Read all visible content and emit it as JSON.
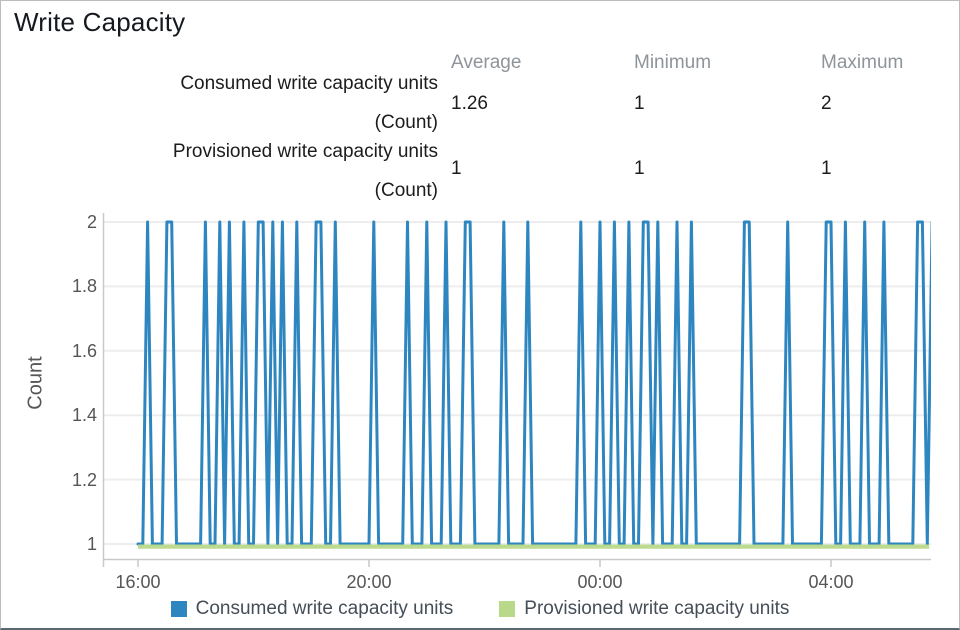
{
  "header": {
    "title": "Write Capacity"
  },
  "stats": {
    "columns": [
      "Average",
      "Minimum",
      "Maximum"
    ],
    "rows": [
      {
        "label": "Consumed write capacity units",
        "unit": "(Count)",
        "values": [
          "1.26",
          "1",
          "2"
        ]
      },
      {
        "label": "Provisioned write capacity units",
        "unit": "(Count)",
        "values": [
          "1",
          "1",
          "1"
        ]
      }
    ]
  },
  "colors": {
    "consumed_blue": "#2e86c0",
    "provisioned_green": "#b9d98a",
    "grid": "#ededed",
    "axis": "#c9c9c9",
    "header_gray": "#8e9499",
    "tick_text": "#565656",
    "legend_text": "#454e57"
  },
  "chart_data": {
    "type": "line",
    "title": "Write Capacity",
    "xlabel": "",
    "ylabel": "Count",
    "ylim": [
      1,
      2
    ],
    "yticks": [
      "1",
      "1.2",
      "1.4",
      "1.6",
      "1.8",
      "2"
    ],
    "ytick_values": [
      1,
      1.2,
      1.4,
      1.6,
      1.8,
      2
    ],
    "xticks": [
      {
        "label": "16:00",
        "m": 0
      },
      {
        "label": "20:00",
        "m": 240
      },
      {
        "label": "00:00",
        "m": 480
      },
      {
        "label": "04:00",
        "m": 720
      }
    ],
    "x_start_m": 0,
    "x_end_m": 822,
    "sample_period_min": 5,
    "grid": true,
    "legend_position": "bottom",
    "series": [
      {
        "name": "Consumed write capacity units",
        "color": "#2e86c0",
        "baseline_value": 1,
        "peak_value": 2,
        "spikes": [
          {
            "m": 10,
            "w": 1
          },
          {
            "m": 30,
            "w": 2
          },
          {
            "m": 70,
            "w": 1
          },
          {
            "m": 85,
            "w": 1
          },
          {
            "m": 95,
            "w": 1
          },
          {
            "m": 110,
            "w": 1
          },
          {
            "m": 125,
            "w": 2
          },
          {
            "m": 140,
            "w": 1
          },
          {
            "m": 150,
            "w": 1
          },
          {
            "m": 165,
            "w": 1
          },
          {
            "m": 185,
            "w": 2
          },
          {
            "m": 205,
            "w": 1
          },
          {
            "m": 245,
            "w": 1
          },
          {
            "m": 280,
            "w": 1
          },
          {
            "m": 300,
            "w": 1
          },
          {
            "m": 320,
            "w": 1
          },
          {
            "m": 340,
            "w": 2
          },
          {
            "m": 380,
            "w": 1
          },
          {
            "m": 405,
            "w": 1
          },
          {
            "m": 460,
            "w": 1
          },
          {
            "m": 480,
            "w": 1
          },
          {
            "m": 495,
            "w": 1
          },
          {
            "m": 510,
            "w": 1
          },
          {
            "m": 525,
            "w": 2
          },
          {
            "m": 540,
            "w": 1
          },
          {
            "m": 560,
            "w": 1
          },
          {
            "m": 575,
            "w": 1
          },
          {
            "m": 630,
            "w": 2
          },
          {
            "m": 675,
            "w": 1
          },
          {
            "m": 715,
            "w": 2
          },
          {
            "m": 735,
            "w": 1
          },
          {
            "m": 755,
            "w": 1
          },
          {
            "m": 775,
            "w": 1
          },
          {
            "m": 810,
            "w": 2
          },
          {
            "m": 825,
            "w": 1
          }
        ]
      },
      {
        "name": "Provisioned write capacity units",
        "color": "#b9d98a",
        "constant_value": 1
      }
    ]
  }
}
